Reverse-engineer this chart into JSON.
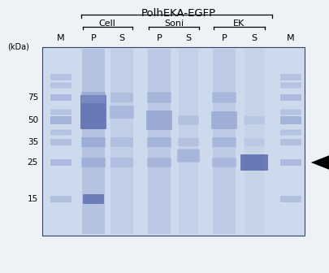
{
  "title": "PolhEKA-EGFP",
  "fig_bg": "#f0f0f0",
  "gel_bg": "#dce8f5",
  "outer_bg": "#f0f4f8",
  "band_blue": "#8899cc",
  "band_blue_dark": "#5566aa",
  "band_mid": "#99aacc",
  "marker_color": "#8899cc",
  "mw_labels": [
    75,
    50,
    35,
    25,
    15
  ],
  "marker_mws": [
    100,
    85,
    75,
    60,
    50,
    40,
    35,
    25,
    15
  ],
  "arrow_color": "#000000"
}
